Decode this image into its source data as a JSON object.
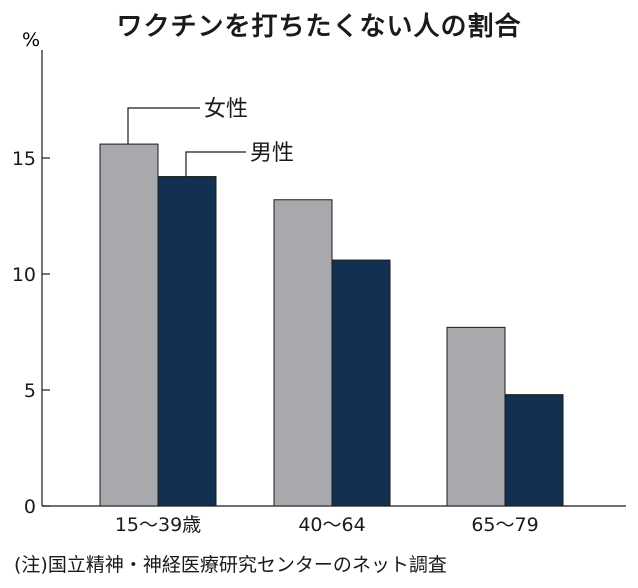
{
  "chart_data": {
    "type": "bar",
    "title": "ワクチンを打ちたくない人の割合",
    "ylabel": "%",
    "ylim": [
      0,
      20
    ],
    "yticks": [
      0,
      5,
      10,
      15
    ],
    "grid": false,
    "categories": [
      "15～39歳",
      "40～64",
      "65～79"
    ],
    "series": [
      {
        "name": "女性",
        "values": [
          15.6,
          13.2,
          7.7
        ],
        "color": "#a7a9ad"
      },
      {
        "name": "男性",
        "values": [
          14.2,
          10.6,
          4.8
        ],
        "color": "#12304f"
      }
    ],
    "legend_placement": "labels pointing to first group bars"
  },
  "footnote": "(注)国立精神・神経医療研究センターのネット調査"
}
